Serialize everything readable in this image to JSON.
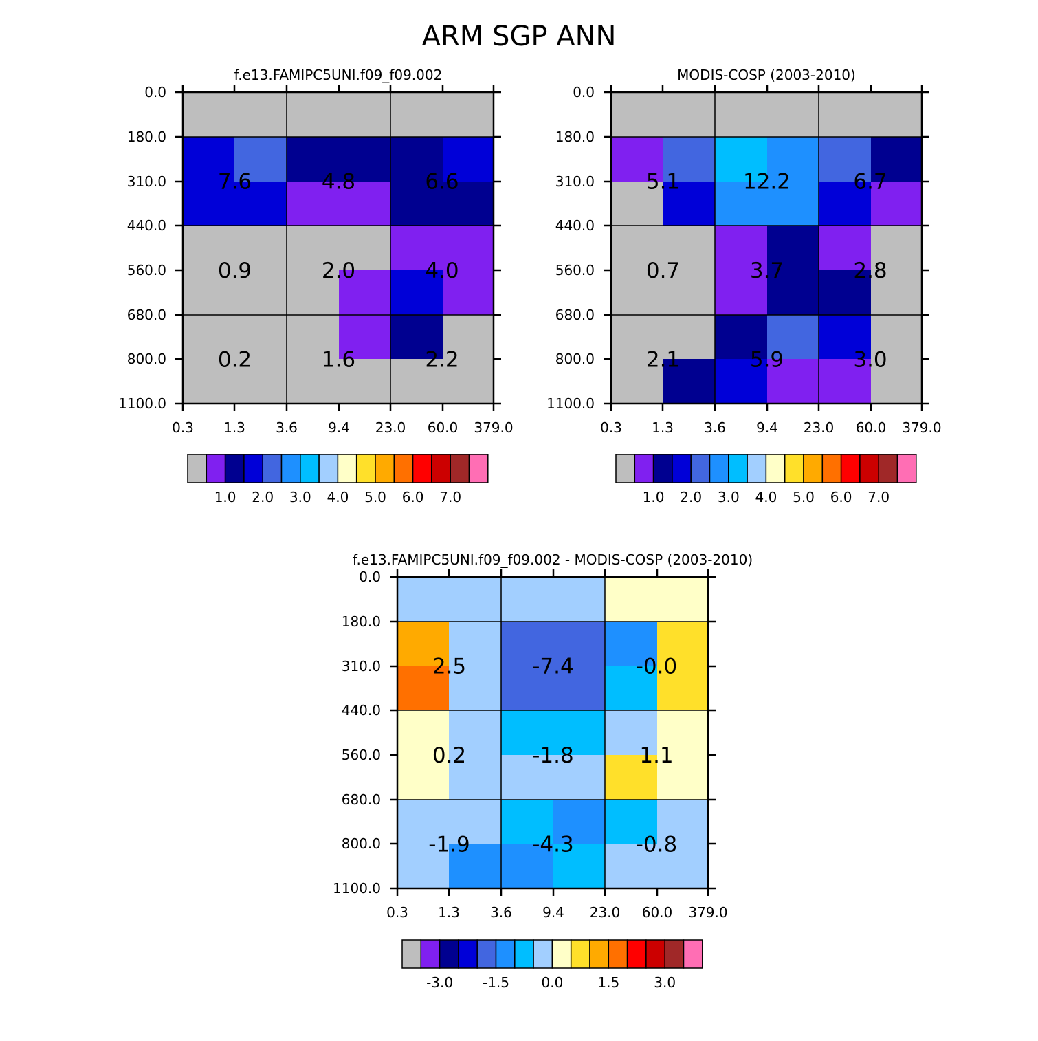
{
  "figure": {
    "title": "ARM SGP ANN"
  },
  "palette": {
    "missing": "#BEBEBE",
    "purple": "#8020F0",
    "navy": "#000090",
    "blue": "#0000D8",
    "royal": "#4266E0",
    "dodger": "#1E90FF",
    "sky": "#00BEFF",
    "lightblue": "#A2CFFF",
    "cream": "#FFFFC8",
    "yellow": "#FFE02A",
    "gold": "#FFAA00",
    "orange": "#FF7000",
    "red": "#FF0000",
    "crimson": "#CC0000",
    "brown": "#A02828",
    "pink": "#FF6EB4"
  },
  "chart_data": [
    {
      "type": "heatmap",
      "title": "f.e13.FAMIPC5UNI.f09_f09.002",
      "xticks": [
        "0.3",
        "1.3",
        "3.6",
        "9.4",
        "23.0",
        "60.0",
        "379.0"
      ],
      "yticks": [
        "0.0",
        "180.0",
        "310.0",
        "440.0",
        "560.0",
        "680.0",
        "800.0",
        "1100.0"
      ],
      "cells": [
        [
          "missing",
          "missing",
          "missing",
          "missing",
          "missing",
          "missing"
        ],
        [
          "blue",
          "royal",
          "navy",
          "navy",
          "navy",
          "blue"
        ],
        [
          "blue",
          "blue",
          "purple",
          "purple",
          "navy",
          "navy"
        ],
        [
          "missing",
          "missing",
          "missing",
          "missing",
          "purple",
          "purple"
        ],
        [
          "missing",
          "missing",
          "missing",
          "purple",
          "blue",
          "purple"
        ],
        [
          "missing",
          "missing",
          "missing",
          "purple",
          "navy",
          "missing"
        ],
        [
          "missing",
          "missing",
          "missing",
          "missing",
          "missing",
          "missing"
        ]
      ],
      "block_values": [
        [
          "7.6",
          "4.8",
          "6.6"
        ],
        [
          "0.9",
          "2.0",
          "4.0"
        ],
        [
          "0.2",
          "1.6",
          "2.2"
        ]
      ],
      "colorbar": {
        "colors": [
          "missing",
          "purple",
          "navy",
          "blue",
          "royal",
          "dodger",
          "sky",
          "lightblue",
          "cream",
          "yellow",
          "gold",
          "orange",
          "red",
          "crimson",
          "brown",
          "pink"
        ],
        "labels": [
          "1.0",
          "2.0",
          "3.0",
          "4.0",
          "5.0",
          "6.0",
          "7.0"
        ],
        "label_first_box": 2,
        "label_step": 2
      }
    },
    {
      "type": "heatmap",
      "title": "MODIS-COSP (2003-2010)",
      "xticks": [
        "0.3",
        "1.3",
        "3.6",
        "9.4",
        "23.0",
        "60.0",
        "379.0"
      ],
      "yticks": [
        "0.0",
        "180.0",
        "310.0",
        "440.0",
        "560.0",
        "680.0",
        "800.0",
        "1100.0"
      ],
      "cells": [
        [
          "missing",
          "missing",
          "missing",
          "missing",
          "missing",
          "missing"
        ],
        [
          "purple",
          "royal",
          "sky",
          "dodger",
          "royal",
          "navy"
        ],
        [
          "missing",
          "blue",
          "dodger",
          "dodger",
          "blue",
          "purple"
        ],
        [
          "missing",
          "missing",
          "purple",
          "navy",
          "purple",
          "missing"
        ],
        [
          "missing",
          "missing",
          "purple",
          "navy",
          "navy",
          "missing"
        ],
        [
          "missing",
          "missing",
          "navy",
          "royal",
          "blue",
          "missing"
        ],
        [
          "missing",
          "navy",
          "blue",
          "purple",
          "purple",
          "missing"
        ]
      ],
      "block_values": [
        [
          "5.1",
          "12.2",
          "6.7"
        ],
        [
          "0.7",
          "3.7",
          "2.8"
        ],
        [
          "2.1",
          "5.9",
          "3.0"
        ]
      ],
      "colorbar": {
        "colors": [
          "missing",
          "purple",
          "navy",
          "blue",
          "royal",
          "dodger",
          "sky",
          "lightblue",
          "cream",
          "yellow",
          "gold",
          "orange",
          "red",
          "crimson",
          "brown",
          "pink"
        ],
        "labels": [
          "1.0",
          "2.0",
          "3.0",
          "4.0",
          "5.0",
          "6.0",
          "7.0"
        ],
        "label_first_box": 2,
        "label_step": 2
      }
    },
    {
      "type": "heatmap",
      "title": "f.e13.FAMIPC5UNI.f09_f09.002 - MODIS-COSP (2003-2010)",
      "xticks": [
        "0.3",
        "1.3",
        "3.6",
        "9.4",
        "23.0",
        "60.0",
        "379.0"
      ],
      "yticks": [
        "0.0",
        "180.0",
        "310.0",
        "440.0",
        "560.0",
        "680.0",
        "800.0",
        "1100.0"
      ],
      "cells": [
        [
          "lightblue",
          "lightblue",
          "lightblue",
          "lightblue",
          "cream",
          "cream"
        ],
        [
          "gold",
          "lightblue",
          "royal",
          "royal",
          "dodger",
          "yellow"
        ],
        [
          "orange",
          "lightblue",
          "royal",
          "royal",
          "sky",
          "yellow"
        ],
        [
          "cream",
          "lightblue",
          "sky",
          "sky",
          "lightblue",
          "cream"
        ],
        [
          "cream",
          "lightblue",
          "lightblue",
          "lightblue",
          "yellow",
          "cream"
        ],
        [
          "lightblue",
          "lightblue",
          "sky",
          "dodger",
          "sky",
          "lightblue"
        ],
        [
          "lightblue",
          "dodger",
          "dodger",
          "sky",
          "lightblue",
          "lightblue"
        ]
      ],
      "block_values": [
        [
          "2.5",
          "-7.4",
          "-0.0"
        ],
        [
          "0.2",
          "-1.8",
          "1.1"
        ],
        [
          "-1.9",
          "-4.3",
          "-0.8"
        ]
      ],
      "colorbar": {
        "colors": [
          "missing",
          "purple",
          "navy",
          "blue",
          "royal",
          "dodger",
          "sky",
          "lightblue",
          "cream",
          "yellow",
          "gold",
          "orange",
          "red",
          "crimson",
          "brown",
          "pink"
        ],
        "labels": [
          "-3.0",
          "-1.5",
          "0.0",
          "1.5",
          "3.0"
        ],
        "label_first_box": 2,
        "label_step": 3
      }
    }
  ]
}
